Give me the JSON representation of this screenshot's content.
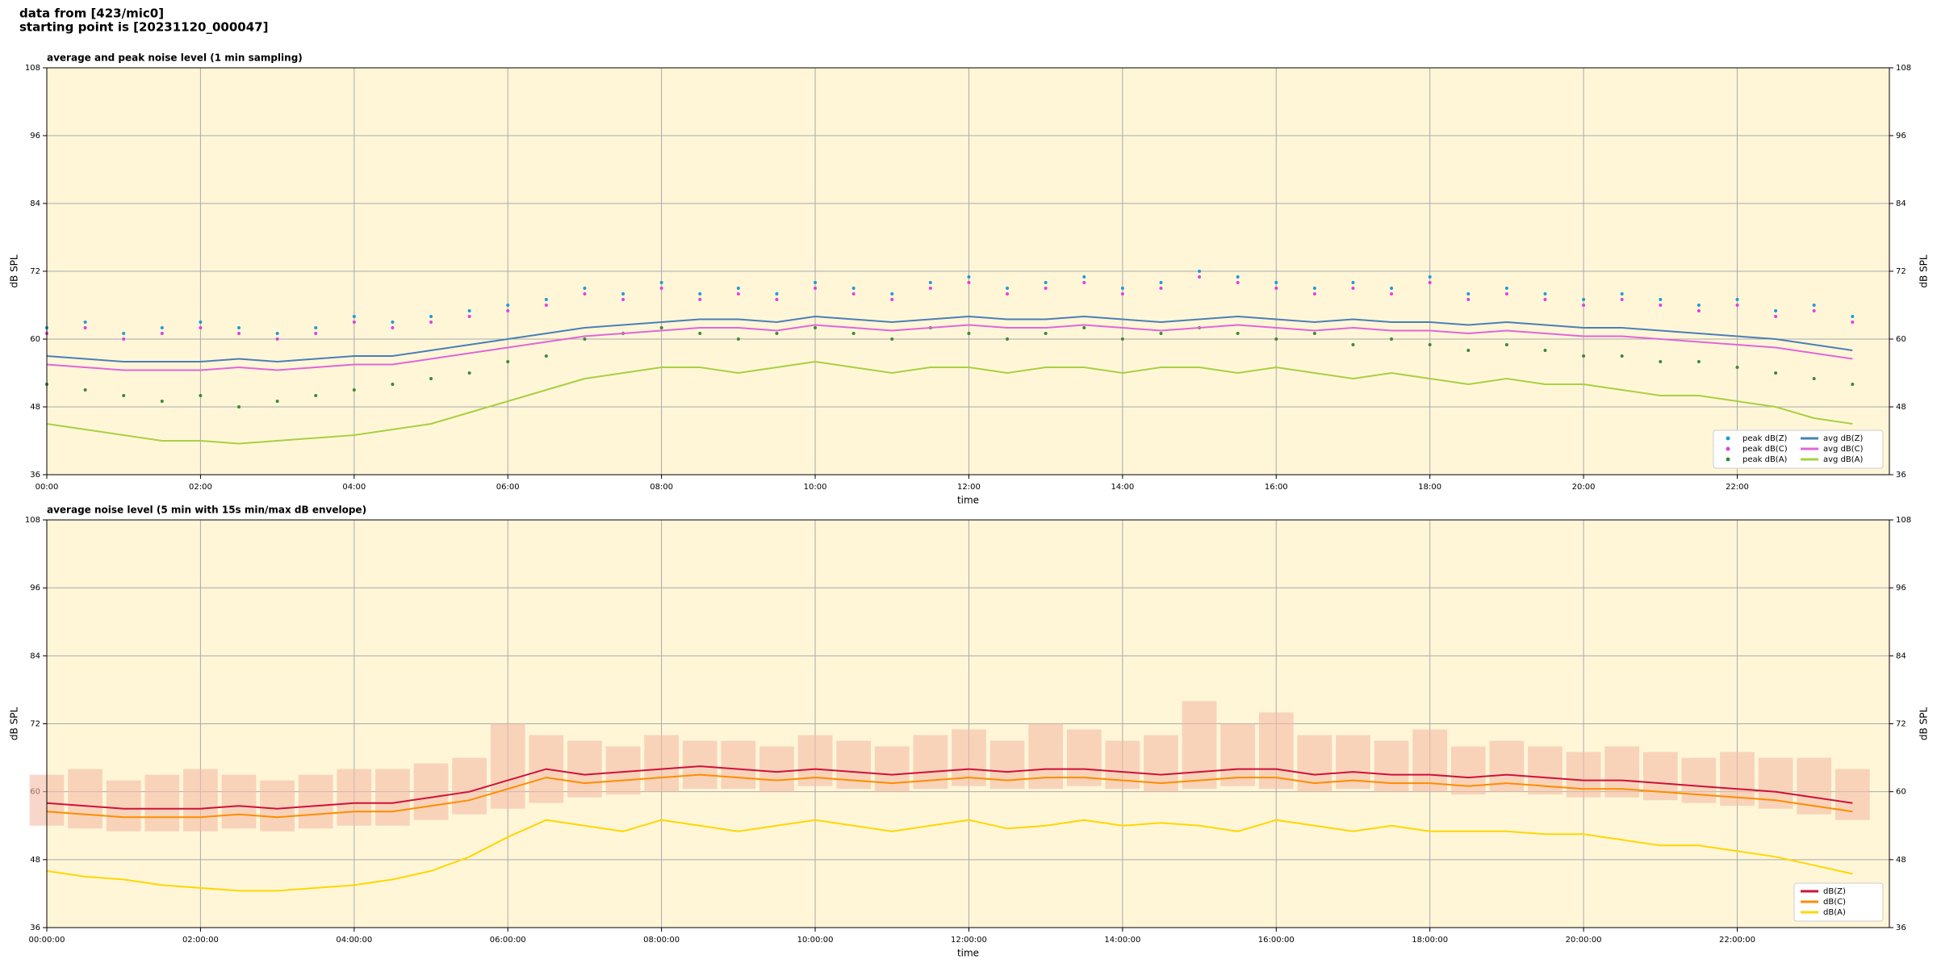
{
  "suptitle": [
    "data from [423/mic0]",
    "starting point is [20231120_000047]"
  ],
  "chart_data": [
    {
      "type": "line",
      "title": "average and peak noise level (1 min sampling)",
      "xlabel": "time",
      "ylabel": "dB SPL",
      "y2label": "dB SPL",
      "background": "#fff6d8",
      "grid": true,
      "legend": "lower right",
      "legend_columns": 2,
      "xlim": [
        0,
        23.98
      ],
      "ylim": [
        36,
        108
      ],
      "y2lim": [
        36,
        108
      ],
      "xticks": [
        {
          "value": 0,
          "label": "00:00"
        },
        {
          "value": 2,
          "label": "02:00"
        },
        {
          "value": 4,
          "label": "04:00"
        },
        {
          "value": 6,
          "label": "06:00"
        },
        {
          "value": 8,
          "label": "08:00"
        },
        {
          "value": 10,
          "label": "10:00"
        },
        {
          "value": 12,
          "label": "12:00"
        },
        {
          "value": 14,
          "label": "14:00"
        },
        {
          "value": 16,
          "label": "16:00"
        },
        {
          "value": 18,
          "label": "18:00"
        },
        {
          "value": 20,
          "label": "20:00"
        },
        {
          "value": 22,
          "label": "22:00"
        }
      ],
      "yticks": [
        36,
        48,
        60,
        72,
        84,
        96,
        108
      ],
      "y2ticks": [
        36,
        48,
        60,
        72,
        84,
        96,
        108
      ],
      "x": [
        0,
        0.5,
        1,
        1.5,
        2,
        2.5,
        3,
        3.5,
        4,
        4.5,
        5,
        5.5,
        6,
        6.5,
        7,
        7.5,
        8,
        8.5,
        9,
        9.5,
        10,
        10.5,
        11,
        11.5,
        12,
        12.5,
        13,
        13.5,
        14,
        14.5,
        15,
        15.5,
        16,
        16.5,
        17,
        17.5,
        18,
        18.5,
        19,
        19.5,
        20,
        20.5,
        21,
        21.5,
        22,
        22.5,
        23,
        23.5
      ],
      "series": [
        {
          "name": "peak dB(Z)",
          "style": "dots",
          "color": "#1f9bd8",
          "values": [
            62,
            63,
            61,
            62,
            63,
            62,
            61,
            62,
            64,
            63,
            64,
            65,
            66,
            67,
            69,
            68,
            70,
            68,
            69,
            68,
            70,
            69,
            68,
            70,
            71,
            69,
            70,
            71,
            69,
            70,
            72,
            71,
            70,
            69,
            70,
            69,
            71,
            68,
            69,
            68,
            67,
            68,
            67,
            66,
            67,
            65,
            66,
            64
          ]
        },
        {
          "name": "peak dB(C)",
          "style": "dots",
          "color": "#e040e0",
          "values": [
            61,
            62,
            60,
            61,
            62,
            61,
            60,
            61,
            63,
            62,
            63,
            64,
            65,
            66,
            68,
            67,
            69,
            67,
            68,
            67,
            69,
            68,
            67,
            69,
            70,
            68,
            69,
            70,
            68,
            69,
            71,
            70,
            69,
            68,
            69,
            68,
            70,
            67,
            68,
            67,
            66,
            67,
            66,
            65,
            66,
            64,
            65,
            63
          ]
        },
        {
          "name": "peak dB(A)",
          "style": "dots",
          "color": "#3a8a3a",
          "values": [
            52,
            51,
            50,
            49,
            50,
            48,
            49,
            50,
            51,
            52,
            53,
            54,
            56,
            57,
            60,
            61,
            62,
            61,
            60,
            61,
            62,
            61,
            60,
            62,
            61,
            60,
            61,
            62,
            60,
            61,
            62,
            61,
            60,
            61,
            59,
            60,
            59,
            58,
            59,
            58,
            57,
            57,
            56,
            56,
            55,
            54,
            53,
            52
          ]
        },
        {
          "name": "avg dB(Z)",
          "style": "line",
          "color": "#4a7fb5",
          "values": [
            57,
            56.5,
            56,
            56,
            56,
            56.5,
            56,
            56.5,
            57,
            57,
            58,
            59,
            60,
            61,
            62,
            62.5,
            63,
            63.5,
            63.5,
            63,
            64,
            63.5,
            63,
            63.5,
            64,
            63.5,
            63.5,
            64,
            63.5,
            63,
            63.5,
            64,
            63.5,
            63,
            63.5,
            63,
            63,
            62.5,
            63,
            62.5,
            62,
            62,
            61.5,
            61,
            60.5,
            60,
            59,
            58
          ]
        },
        {
          "name": "avg dB(C)",
          "style": "line",
          "color": "#e066d8",
          "values": [
            55.5,
            55,
            54.5,
            54.5,
            54.5,
            55,
            54.5,
            55,
            55.5,
            55.5,
            56.5,
            57.5,
            58.5,
            59.5,
            60.5,
            61,
            61.5,
            62,
            62,
            61.5,
            62.5,
            62,
            61.5,
            62,
            62.5,
            62,
            62,
            62.5,
            62,
            61.5,
            62,
            62.5,
            62,
            61.5,
            62,
            61.5,
            61.5,
            61,
            61.5,
            61,
            60.5,
            60.5,
            60,
            59.5,
            59,
            58.5,
            57.5,
            56.5
          ]
        },
        {
          "name": "avg dB(A)",
          "style": "line",
          "color": "#a8d040",
          "values": [
            45,
            44,
            43,
            42,
            42,
            41.5,
            42,
            42.5,
            43,
            44,
            45,
            47,
            49,
            51,
            53,
            54,
            55,
            55,
            54,
            55,
            56,
            55,
            54,
            55,
            55,
            54,
            55,
            55,
            54,
            55,
            55,
            54,
            55,
            54,
            53,
            54,
            53,
            52,
            53,
            52,
            52,
            51,
            50,
            50,
            49,
            48,
            46,
            45
          ]
        }
      ]
    },
    {
      "type": "line",
      "title": "average noise level (5 min with 15s min/max dB envelope)",
      "xlabel": "time",
      "ylabel": "dB SPL",
      "y2label": "dB SPL",
      "background": "#fff6d8",
      "grid": true,
      "legend": "lower right",
      "legend_columns": 1,
      "xlim": [
        0,
        23.98
      ],
      "ylim": [
        36,
        108
      ],
      "y2lim": [
        36,
        108
      ],
      "xticks": [
        {
          "value": 0,
          "label": "00:00:00"
        },
        {
          "value": 2,
          "label": "02:00:00"
        },
        {
          "value": 4,
          "label": "04:00:00"
        },
        {
          "value": 6,
          "label": "06:00:00"
        },
        {
          "value": 8,
          "label": "08:00:00"
        },
        {
          "value": 10,
          "label": "10:00:00"
        },
        {
          "value": 12,
          "label": "12:00:00"
        },
        {
          "value": 14,
          "label": "14:00:00"
        },
        {
          "value": 16,
          "label": "16:00:00"
        },
        {
          "value": 18,
          "label": "18:00:00"
        },
        {
          "value": 20,
          "label": "20:00:00"
        },
        {
          "value": 22,
          "label": "22:00:00"
        }
      ],
      "yticks": [
        36,
        48,
        60,
        72,
        84,
        96,
        108
      ],
      "y2ticks": [
        36,
        48,
        60,
        72,
        84,
        96,
        108
      ],
      "x": [
        0,
        0.5,
        1,
        1.5,
        2,
        2.5,
        3,
        3.5,
        4,
        4.5,
        5,
        5.5,
        6,
        6.5,
        7,
        7.5,
        8,
        8.5,
        9,
        9.5,
        10,
        10.5,
        11,
        11.5,
        12,
        12.5,
        13,
        13.5,
        14,
        14.5,
        15,
        15.5,
        16,
        16.5,
        17,
        17.5,
        18,
        18.5,
        19,
        19.5,
        20,
        20.5,
        21,
        21.5,
        22,
        22.5,
        23,
        23.5
      ],
      "envelope": {
        "color": "#f4bca6",
        "upper": [
          63,
          64,
          62,
          63,
          64,
          63,
          62,
          63,
          64,
          64,
          65,
          66,
          72,
          70,
          69,
          68,
          70,
          69,
          69,
          68,
          70,
          69,
          68,
          70,
          71,
          69,
          72,
          71,
          69,
          70,
          76,
          72,
          74,
          70,
          70,
          69,
          71,
          68,
          69,
          68,
          67,
          68,
          67,
          66,
          67,
          66,
          66,
          64
        ],
        "lower": [
          54,
          53.5,
          53,
          53,
          53,
          53.5,
          53,
          53.5,
          54,
          54,
          55,
          56,
          57,
          58,
          59,
          59.5,
          60,
          60.5,
          60.5,
          60,
          61,
          60.5,
          60,
          60.5,
          61,
          60.5,
          60.5,
          61,
          60.5,
          60,
          60.5,
          61,
          60.5,
          60,
          60.5,
          60,
          60,
          59.5,
          60,
          59.5,
          59,
          59,
          58.5,
          58,
          57.5,
          57,
          56,
          55
        ]
      },
      "series": [
        {
          "name": "dB(Z)",
          "style": "line",
          "color": "#d0103a",
          "values": [
            58,
            57.5,
            57,
            57,
            57,
            57.5,
            57,
            57.5,
            58,
            58,
            59,
            60,
            62,
            64,
            63,
            63.5,
            64,
            64.5,
            64,
            63.5,
            64,
            63.5,
            63,
            63.5,
            64,
            63.5,
            64,
            64,
            63.5,
            63,
            63.5,
            64,
            64,
            63,
            63.5,
            63,
            63,
            62.5,
            63,
            62.5,
            62,
            62,
            61.5,
            61,
            60.5,
            60,
            59,
            58
          ]
        },
        {
          "name": "dB(C)",
          "style": "line",
          "color": "#ff8c00",
          "values": [
            56.5,
            56,
            55.5,
            55.5,
            55.5,
            56,
            55.5,
            56,
            56.5,
            56.5,
            57.5,
            58.5,
            60.5,
            62.5,
            61.5,
            62,
            62.5,
            63,
            62.5,
            62,
            62.5,
            62,
            61.5,
            62,
            62.5,
            62,
            62.5,
            62.5,
            62,
            61.5,
            62,
            62.5,
            62.5,
            61.5,
            62,
            61.5,
            61.5,
            61,
            61.5,
            61,
            60.5,
            60.5,
            60,
            59.5,
            59,
            58.5,
            57.5,
            56.5
          ]
        },
        {
          "name": "dB(A)",
          "style": "line",
          "color": "#ffd700",
          "values": [
            46,
            45,
            44.5,
            43.5,
            43,
            42.5,
            42.5,
            43,
            43.5,
            44.5,
            46,
            48.5,
            52,
            55,
            54,
            53,
            55,
            54,
            53,
            54,
            55,
            54,
            53,
            54,
            55,
            53.5,
            54,
            55,
            54,
            54.5,
            54,
            53,
            55,
            54,
            53,
            54,
            53,
            53,
            53,
            52.5,
            52.5,
            51.5,
            50.5,
            50.5,
            49.5,
            48.5,
            47,
            45.5
          ]
        }
      ]
    }
  ]
}
